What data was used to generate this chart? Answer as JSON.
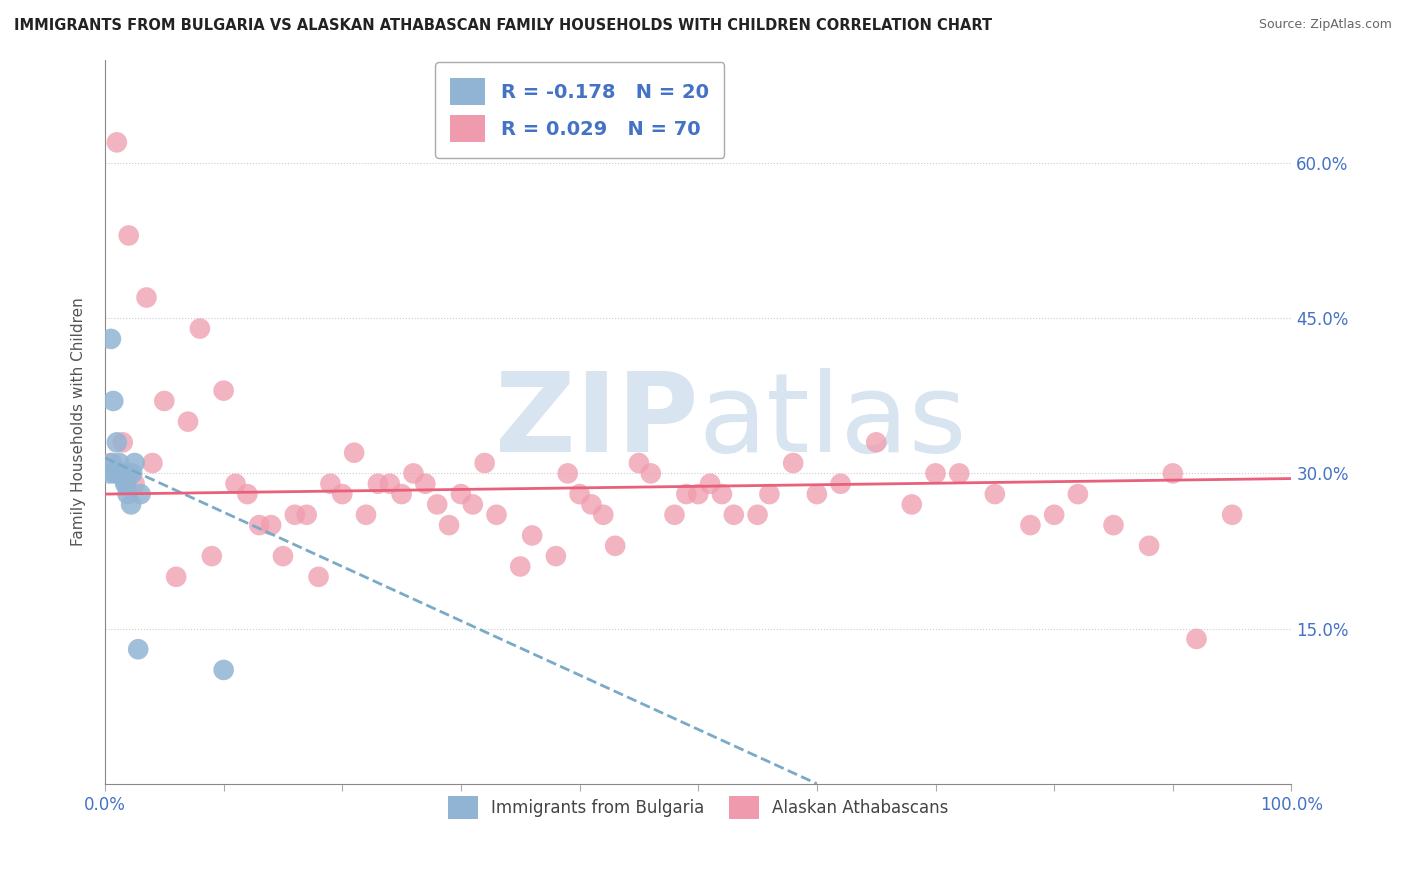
{
  "title": "IMMIGRANTS FROM BULGARIA VS ALASKAN ATHABASCAN FAMILY HOUSEHOLDS WITH CHILDREN CORRELATION CHART",
  "source": "Source: ZipAtlas.com",
  "ylabel": "Family Households with Children",
  "xlim": [
    0,
    100
  ],
  "ylim": [
    0,
    70
  ],
  "ytick_positions": [
    15,
    30,
    45,
    60
  ],
  "ytick_labels": [
    "15.0%",
    "30.0%",
    "45.0%",
    "60.0%"
  ],
  "xtick_positions": [
    0,
    100
  ],
  "xtick_labels": [
    "0.0%",
    "100.0%"
  ],
  "legend_label1": "Immigrants from Bulgaria",
  "legend_label2": "Alaskan Athabascans",
  "r1": "-0.178",
  "n1": "20",
  "r2": "0.029",
  "n2": "70",
  "color_blue": "#92b4d4",
  "color_pink": "#f09bad",
  "line_blue_color": "#7aaac8",
  "line_pink_color": "#e8607a",
  "watermark_color": "#d8e4f0",
  "blue_x": [
    0.5,
    0.7,
    1.0,
    1.2,
    1.5,
    1.8,
    2.0,
    2.3,
    2.5,
    3.0,
    0.4,
    0.6,
    0.8,
    1.1,
    1.4,
    1.7,
    1.9,
    2.2,
    2.8,
    10.0
  ],
  "blue_y": [
    43,
    37,
    33,
    31,
    30,
    29,
    30,
    30,
    31,
    28,
    30,
    31,
    30,
    30,
    30,
    29,
    28,
    27,
    13,
    11
  ],
  "pink_x": [
    1.0,
    2.0,
    3.5,
    5.0,
    7.0,
    8.0,
    10.0,
    11.0,
    12.0,
    14.0,
    16.0,
    18.0,
    20.0,
    22.0,
    24.0,
    26.0,
    28.0,
    30.0,
    32.0,
    35.0,
    38.0,
    40.0,
    42.0,
    45.0,
    48.0,
    50.0,
    52.0,
    55.0,
    58.0,
    60.0,
    62.0,
    65.0,
    68.0,
    70.0,
    72.0,
    75.0,
    78.0,
    80.0,
    82.0,
    85.0,
    88.0,
    90.0,
    92.0,
    95.0,
    0.5,
    1.5,
    2.5,
    4.0,
    6.0,
    9.0,
    13.0,
    15.0,
    17.0,
    19.0,
    21.0,
    23.0,
    25.0,
    27.0,
    29.0,
    31.0,
    33.0,
    36.0,
    39.0,
    41.0,
    43.0,
    46.0,
    49.0,
    51.0,
    53.0,
    56.0
  ],
  "pink_y": [
    62,
    53,
    47,
    37,
    35,
    44,
    38,
    29,
    28,
    25,
    26,
    20,
    28,
    26,
    29,
    30,
    27,
    28,
    31,
    21,
    22,
    28,
    26,
    31,
    26,
    28,
    28,
    26,
    31,
    28,
    29,
    33,
    27,
    30,
    30,
    28,
    25,
    26,
    28,
    25,
    23,
    30,
    14,
    26,
    31,
    33,
    29,
    31,
    20,
    22,
    25,
    22,
    26,
    29,
    32,
    29,
    28,
    29,
    25,
    27,
    26,
    24,
    30,
    27,
    23,
    30,
    28,
    29,
    26,
    28
  ],
  "blue_line_x0": 0,
  "blue_line_y0": 31.5,
  "blue_line_x1": 60,
  "blue_line_y1": 0,
  "pink_line_x0": 0,
  "pink_line_y0": 28.0,
  "pink_line_x1": 100,
  "pink_line_y1": 29.5
}
